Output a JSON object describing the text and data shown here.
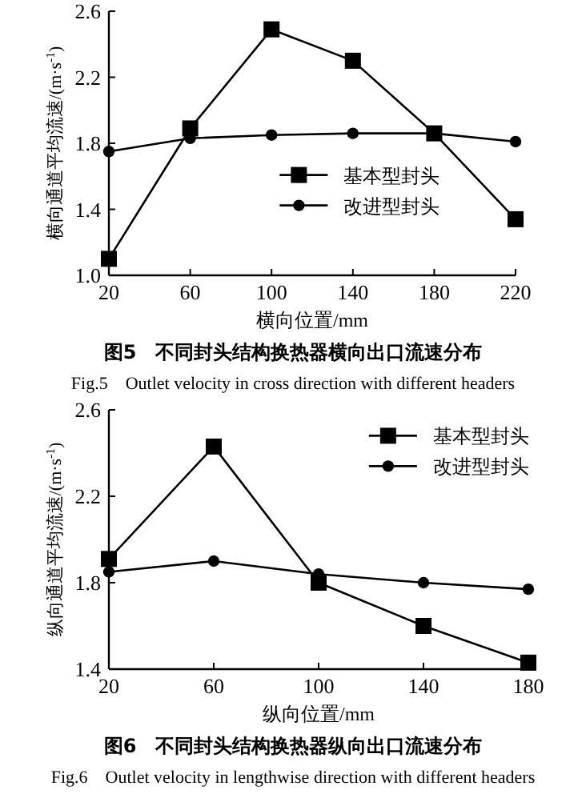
{
  "chart_data": [
    {
      "type": "line",
      "title": "图5　不同封头结构换热器横向出口流速分布",
      "subtitle": "Fig.5　Outlet velocity in cross direction with different headers",
      "xlabel": "横向位置/mm",
      "ylabel": "横向通道平均流速/(m·s$^{-1}$)",
      "x": [
        20,
        60,
        100,
        140,
        180,
        220
      ],
      "series": [
        {
          "name": "基本型封头",
          "color": "#000000",
          "marker": "square",
          "values": [
            1.1,
            1.89,
            2.49,
            2.3,
            1.86,
            1.34
          ]
        },
        {
          "name": "改进型封头",
          "color": "#000000",
          "marker": "circle",
          "values": [
            1.75,
            1.83,
            1.85,
            1.86,
            1.86,
            1.81
          ]
        }
      ],
      "xlim": [
        20,
        220
      ],
      "xticks": [
        20,
        60,
        100,
        140,
        180,
        220
      ],
      "ylim": [
        1.0,
        2.6
      ],
      "yticks": [
        {
          "value": 1.0,
          "label": "1.0"
        },
        1.4,
        1.8,
        2.2,
        2.6
      ],
      "legend": "bottom"
    },
    {
      "type": "line",
      "title": "图6　不同封头结构换热器纵向出口流速分布",
      "subtitle": "Fig.6　Outlet velocity in lengthwise direction with different headers",
      "xlabel": "纵向位置/mm",
      "ylabel": "纵向通道平均流速/(m·s$^{-1}$)",
      "x": [
        20,
        60,
        100,
        140,
        180
      ],
      "series": [
        {
          "name": "基本型封头",
          "color": "#000000",
          "marker": "square",
          "values": [
            1.91,
            2.43,
            1.8,
            1.6,
            1.43
          ]
        },
        {
          "name": "改进型封头",
          "color": "#000000",
          "marker": "circle",
          "values": [
            1.85,
            1.9,
            1.84,
            1.8,
            1.77
          ]
        }
      ],
      "xlim": [
        20,
        180
      ],
      "xticks": [
        20,
        60,
        100,
        140,
        180
      ],
      "ylim": [
        1.4,
        2.6
      ],
      "yticks": [
        1.4,
        1.8,
        2.2,
        2.6
      ],
      "legend": "top right"
    }
  ]
}
